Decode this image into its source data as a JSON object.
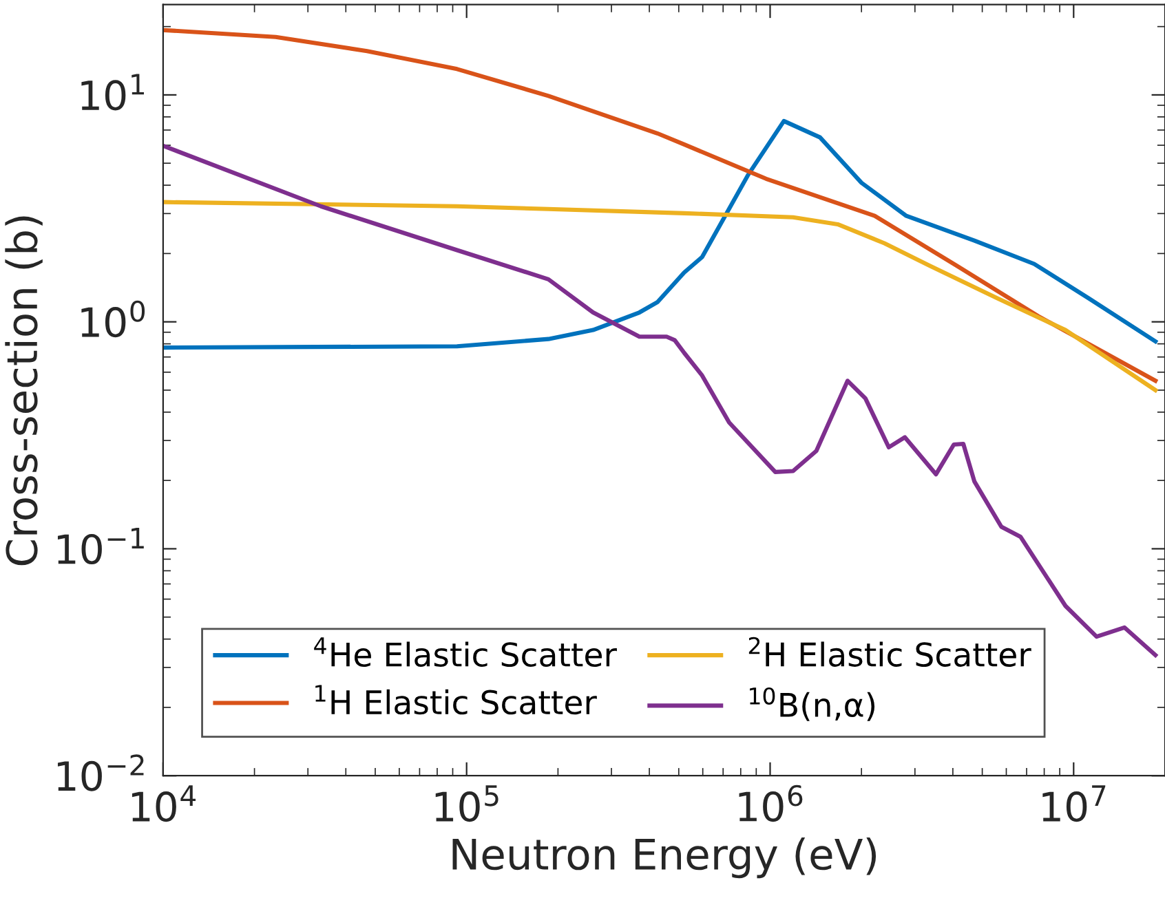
{
  "chart_data": {
    "type": "line",
    "xlabel": "Neutron Energy (eV)",
    "ylabel": "Cross-section (b)",
    "log": "xy",
    "grid": false,
    "legend": "bottom left",
    "xlim": [
      10000,
      20000000
    ],
    "ylim": [
      0.01,
      25
    ],
    "xticks": [
      {
        "value": 10000,
        "label": "10$^{4}$"
      },
      {
        "value": 100000,
        "label": "10$^{5}$"
      },
      {
        "value": 1000000,
        "label": "10$^{6}$"
      },
      {
        "value": 10000000,
        "label": "10$^{7}$"
      }
    ],
    "yticks": [
      {
        "value": 0.01,
        "label": "10$^{−2}$"
      },
      {
        "value": 0.1,
        "label": "10$^{−1}$"
      },
      {
        "value": 1,
        "label": "10$^{0}$"
      },
      {
        "value": 10,
        "label": "10$^{1}$"
      }
    ],
    "series": [
      {
        "name": "$^{4}$He Elastic Scatter",
        "color": "#0072bd",
        "x": [
          10000,
          93000,
          186000,
          261000,
          371000,
          425000,
          521000,
          597000,
          847000,
          1110000,
          1460000,
          2000000,
          2810000,
          4710000,
          7410000,
          11200000,
          18600000
        ],
        "values": [
          0.77,
          0.78,
          0.84,
          0.92,
          1.1,
          1.22,
          1.65,
          1.93,
          4.45,
          7.67,
          6.5,
          4.1,
          2.93,
          2.28,
          1.8,
          1.27,
          0.82
        ]
      },
      {
        "name": "$^{1}$H Elastic Scatter",
        "color": "#d95319",
        "x": [
          10000,
          23500,
          47000,
          93000,
          186000,
          425000,
          521000,
          970000,
          2210000,
          4110000,
          7640000,
          18600000
        ],
        "values": [
          19.3,
          18,
          15.6,
          13,
          9.9,
          6.77,
          6.05,
          4.27,
          2.93,
          1.77,
          1.06,
          0.55
        ]
      },
      {
        "name": "$^{2}$H Elastic Scatter",
        "color": "#edb120",
        "x": [
          10000,
          93000,
          186000,
          521000,
          1190000,
          1670000,
          2380000,
          3350000,
          5610000,
          9400000,
          18600000
        ],
        "values": [
          3.37,
          3.23,
          3.14,
          3.01,
          2.89,
          2.69,
          2.22,
          1.77,
          1.27,
          0.92,
          0.5
        ]
      },
      {
        "name": "$^{10}$B(n,α)",
        "color": "#7e2f8e",
        "x": [
          10000,
          33100,
          93000,
          186000,
          261000,
          371000,
          456000,
          485000,
          521000,
          597000,
          733000,
          1040000,
          1190000,
          1420000,
          1800000,
          2060000,
          2460000,
          2780000,
          3520000,
          4030000,
          4330000,
          4710000,
          5780000,
          6680000,
          9400000,
          11900000,
          14700000,
          18600000
        ],
        "values": [
          5.97,
          3.23,
          2.07,
          1.54,
          1.1,
          0.86,
          0.86,
          0.83,
          0.73,
          0.58,
          0.36,
          0.218,
          0.22,
          0.27,
          0.55,
          0.46,
          0.28,
          0.31,
          0.213,
          0.288,
          0.29,
          0.198,
          0.125,
          0.113,
          0.056,
          0.041,
          0.045,
          0.034
        ]
      }
    ]
  }
}
